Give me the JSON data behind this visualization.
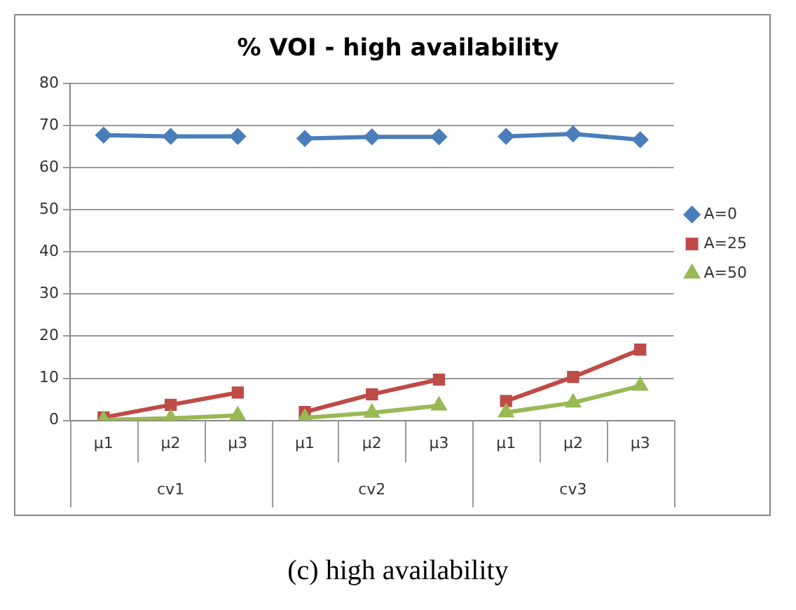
{
  "chart_data": {
    "type": "line",
    "title": "% VOI - high availability",
    "categories": [
      "μ1",
      "μ2",
      "μ3",
      "μ1",
      "μ2",
      "μ3",
      "μ1",
      "μ2",
      "μ3"
    ],
    "series": [
      {
        "name": "A=0",
        "color": "#4a7ebb",
        "marker": "diamond",
        "values": [
          67.7,
          67.4,
          67.4,
          66.9,
          67.3,
          67.3,
          67.4,
          68.0,
          66.6
        ]
      },
      {
        "name": "A=25",
        "color": "#be4b48",
        "marker": "square",
        "values": [
          0.7,
          3.7,
          6.6,
          2.0,
          6.2,
          9.7,
          4.6,
          10.3,
          16.8
        ]
      },
      {
        "name": "A=50",
        "color": "#98b954",
        "marker": "triangle",
        "values": [
          0.1,
          0.5,
          1.2,
          0.6,
          1.8,
          3.5,
          1.9,
          4.2,
          8.2
        ]
      }
    ],
    "ylim": [
      0,
      80
    ],
    "yticks": [
      0,
      10,
      20,
      30,
      40,
      50,
      60,
      70,
      80
    ],
    "grid": "y",
    "legend": "right",
    "annotations": [
      "cv1",
      "cv2",
      "cv3",
      "(c) high availability"
    ]
  }
}
